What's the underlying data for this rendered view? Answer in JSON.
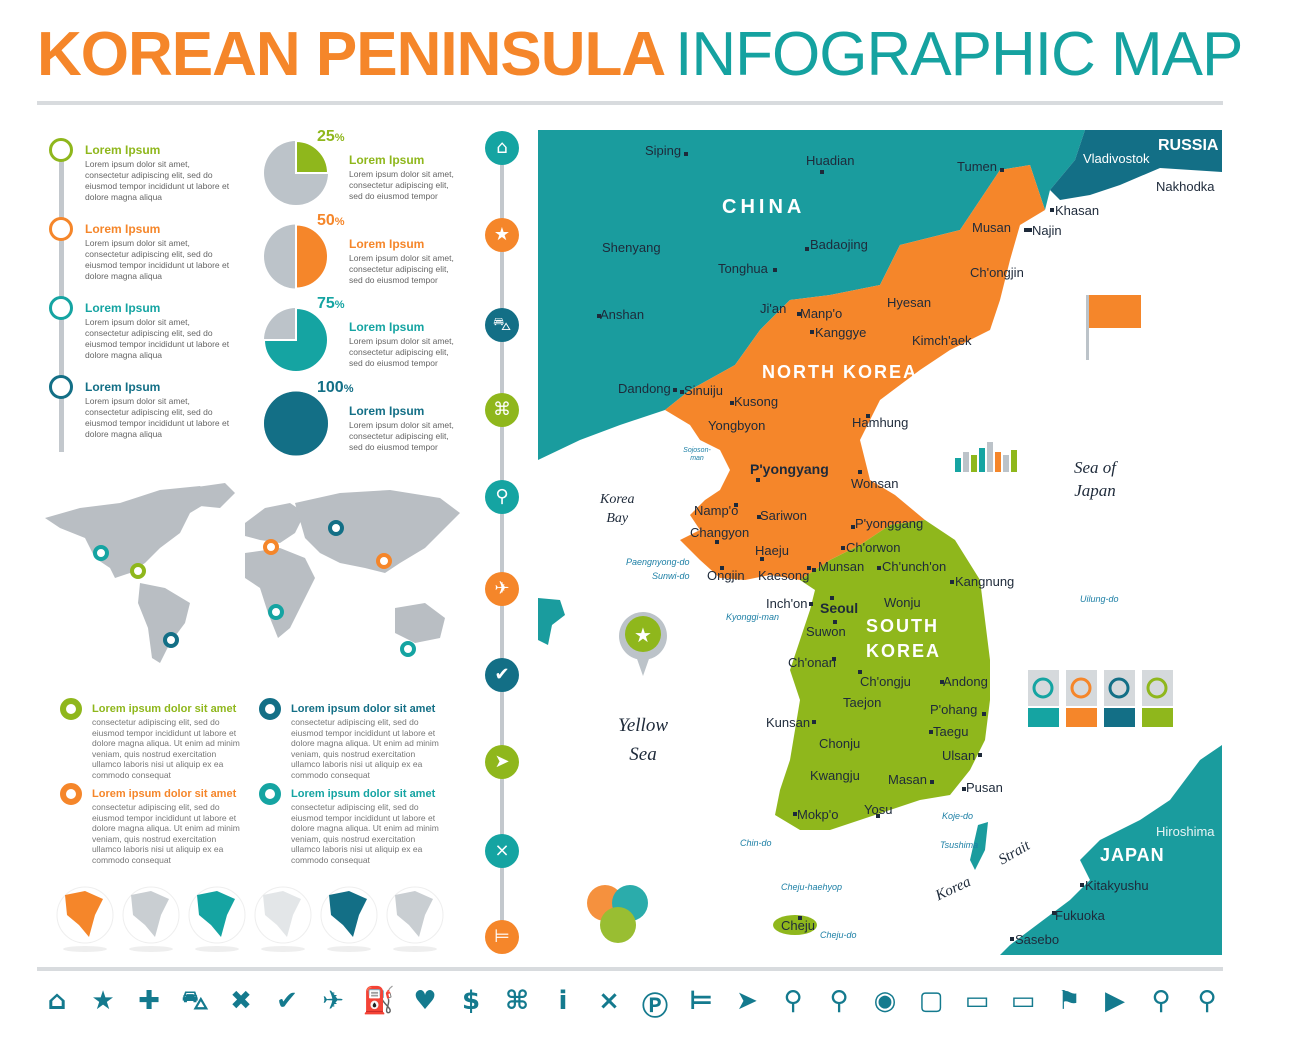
{
  "title": {
    "part1": "KOREAN PENINSULA",
    "part2": "INFOGRAPHIC MAP"
  },
  "colors": {
    "orange": "#f5862a",
    "green": "#8fb71c",
    "teal": "#15a4a2",
    "dark_teal": "#136f86",
    "gray": "#bcc3c9",
    "map_land": "#1a9c9e"
  },
  "timeline": [
    {
      "title": "Lorem Ipsum",
      "text": "Lorem ipsum dolor sit amet, consectetur adipiscing elit, sed do eiusmod tempor incididunt ut labore et dolore magna aliqua",
      "color": "#8fb71c"
    },
    {
      "title": "Lorem Ipsum",
      "text": "Lorem ipsum dolor sit amet, consectetur adipiscing elit, sed do eiusmod tempor incididunt ut labore et dolore magna aliqua",
      "color": "#f5862a"
    },
    {
      "title": "Lorem Ipsum",
      "text": "Lorem ipsum dolor sit amet, consectetur adipiscing elit, sed do eiusmod tempor incididunt ut labore et dolore magna aliqua",
      "color": "#15a4a2"
    },
    {
      "title": "Lorem Ipsum",
      "text": "Lorem ipsum dolor sit amet, consectetur adipiscing elit, sed do eiusmod tempor incididunt ut labore et dolore magna aliqua",
      "color": "#136f86"
    }
  ],
  "pies": [
    {
      "percent": 25,
      "label": "25",
      "unit": "%",
      "title": "Lorem Ipsum",
      "text": "Lorem ipsum dolor sit amet, consectetur adipiscing elit, sed do eiusmod tempor",
      "color": "#8fb71c"
    },
    {
      "percent": 50,
      "label": "50",
      "unit": "%",
      "title": "Lorem Ipsum",
      "text": "Lorem ipsum dolor sit amet, consectetur adipiscing elit, sed do eiusmod tempor",
      "color": "#f5862a"
    },
    {
      "percent": 75,
      "label": "75",
      "unit": "%",
      "title": "Lorem Ipsum",
      "text": "Lorem ipsum dolor sit amet, consectetur adipiscing elit, sed do eiusmod tempor",
      "color": "#15a4a2"
    },
    {
      "percent": 100,
      "label": "100",
      "unit": "%",
      "title": "Lorem Ipsum",
      "text": "Lorem ipsum dolor sit amet, consectetur adipiscing elit, sed do eiusmod tempor",
      "color": "#136f86"
    }
  ],
  "blocks": [
    {
      "title": "Lorem ipsum dolor sit amet",
      "text": "consectetur adipiscing elit, sed do eiusmod tempor incididunt ut labore et dolore magna aliqua. Ut enim ad minim veniam, quis nostrud exercitation ullamco laboris nisi ut aliquip ex ea commodo consequat",
      "color": "#8fb71c"
    },
    {
      "title": "Lorem ipsum dolor sit amet",
      "text": "consectetur adipiscing elit, sed do eiusmod tempor incididunt ut labore et dolore magna aliqua. Ut enim ad minim veniam, quis nostrud exercitation ullamco laboris nisi ut aliquip ex ea commodo consequat",
      "color": "#136f86"
    },
    {
      "title": "Lorem ipsum dolor sit amet",
      "text": "consectetur adipiscing elit, sed do eiusmod tempor incididunt ut labore et dolore magna aliqua. Ut enim ad minim veniam, quis nostrud exercitation ullamco laboris nisi ut aliquip ex ea commodo consequat",
      "color": "#f5862a"
    },
    {
      "title": "Lorem ipsum dolor sit amet",
      "text": "consectetur adipiscing elit, sed do eiusmod tempor incididunt ut labore et dolore magna aliqua. Ut enim ad minim veniam, quis nostrud exercitation ullamco laboris nisi ut aliquip ex ea commodo consequat",
      "color": "#15a4a2"
    }
  ],
  "vertical_icons": [
    "home-icon",
    "star-icon",
    "car-icon",
    "command-icon",
    "map-pin-icon",
    "plane-icon",
    "check-icon",
    "navigation-icon",
    "fork-knife-icon",
    "bed-icon"
  ],
  "bottom_icons": [
    "home-icon",
    "star-icon",
    "plus-icon",
    "car-icon",
    "close-icon",
    "check-icon",
    "plane-icon",
    "fuel-icon",
    "heart-icon",
    "dollar-icon",
    "command-icon",
    "info-icon",
    "fork-knife-icon",
    "parking-icon",
    "bed-icon",
    "navigation-icon",
    "map-pin-icon",
    "map-pin-small-icon",
    "target-pin-icon",
    "square-pin-icon",
    "speech-bubble-icon",
    "wide-speech-bubble-icon",
    "flag-icon",
    "pennant-icon",
    "push-pin-icon",
    "magnifier-icon"
  ],
  "map": {
    "countries": [
      "CHINA",
      "NORTH KOREA",
      "SOUTH",
      "KOREA",
      "RUSSIA",
      "JAPAN"
    ],
    "cities": [
      "Siping",
      "Huadian",
      "Tumen",
      "Vladivostok",
      "Nakhodka",
      "Khasan",
      "Shenyang",
      "Badaojing",
      "Musan",
      "Najin",
      "Tonghua",
      "Ch'ongjin",
      "Hyesan",
      "Ji'an",
      "Manp'o",
      "Anshan",
      "Kanggye",
      "Kimch'aek",
      "Dandong",
      "Sinuiju",
      "Kusong",
      "Hamhung",
      "Yongbyon",
      "P'yongyang",
      "Wonsan",
      "Namp'o",
      "Sariwon",
      "P'yonggang",
      "Changyon",
      "Ch'orwon",
      "Haeju",
      "Munsan",
      "Ch'unch'on",
      "Ongjin",
      "Kaesong",
      "Kangnung",
      "Inch'on",
      "Seoul",
      "Wonju",
      "Suwon",
      "Ch'onan",
      "Ch'ongju",
      "Andong",
      "Taejon",
      "P'ohang",
      "Taegu",
      "Kunsan",
      "Chonju",
      "Ulsan",
      "Kwangju",
      "Masan",
      "Pusan",
      "Mokp'o",
      "Yosu",
      "Cheju",
      "Hiroshima",
      "Kitakyushu",
      "Fukuoka",
      "Sasebo"
    ],
    "water": {
      "korea_bay": [
        "Korea",
        "Bay"
      ],
      "yellow_sea": [
        "Yellow",
        "Sea"
      ],
      "sea_of_japan": [
        "Sea of",
        "Japan"
      ],
      "korea_strait": [
        "Korea",
        "Strait"
      ]
    },
    "minor": [
      "Sojoson-man",
      "Paengnyong-do",
      "Sunwi-do",
      "Kyonggi-man",
      "Chin-do",
      "Cheju-haehyop",
      "Cheju-do",
      "Koje-do",
      "Tsushima",
      "Uilung-do"
    ]
  }
}
